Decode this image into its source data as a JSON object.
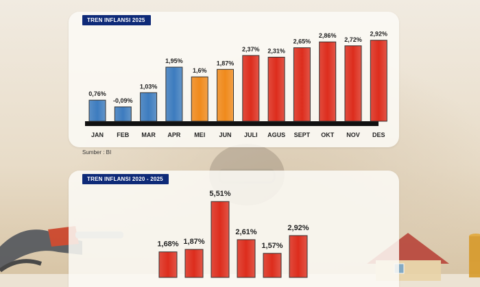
{
  "source": "Sumber : BI",
  "colors": {
    "blue": "#3d7cbf",
    "orange": "#f08a1c",
    "red": "#dd2d1d",
    "tag": "#0e2a78"
  },
  "chart_data": [
    {
      "type": "bar",
      "title": "TREN INFLANSI 2025",
      "categories": [
        "JAN",
        "FEB",
        "MAR",
        "APR",
        "MEI",
        "JUN",
        "JULI",
        "AGUS",
        "SEPT",
        "OKT",
        "NOV",
        "DES"
      ],
      "values": [
        0.76,
        -0.09,
        1.03,
        1.95,
        1.6,
        1.87,
        2.37,
        2.31,
        2.65,
        2.86,
        2.72,
        2.92
      ],
      "labels": [
        "0,76%",
        "-0,09%",
        "1,03%",
        "1,95%",
        "1,6%",
        "1,87%",
        "2,37%",
        "2,31%",
        "2,65%",
        "2,86%",
        "2,72%",
        "2,92%"
      ],
      "bar_colors": [
        "blue",
        "blue",
        "blue",
        "blue",
        "orange",
        "orange",
        "red",
        "red",
        "red",
        "red",
        "red",
        "red"
      ]
    },
    {
      "type": "bar",
      "title": "TREN INFLANSI 2020 - 2025",
      "values": [
        1.68,
        1.87,
        5.51,
        2.61,
        1.57,
        2.92
      ],
      "labels": [
        "1,68%",
        "1,87%",
        "5,51%",
        "2,61%",
        "1,57%",
        "2,92%"
      ],
      "bar_colors": [
        "red",
        "red",
        "red",
        "red",
        "red",
        "red"
      ]
    }
  ]
}
